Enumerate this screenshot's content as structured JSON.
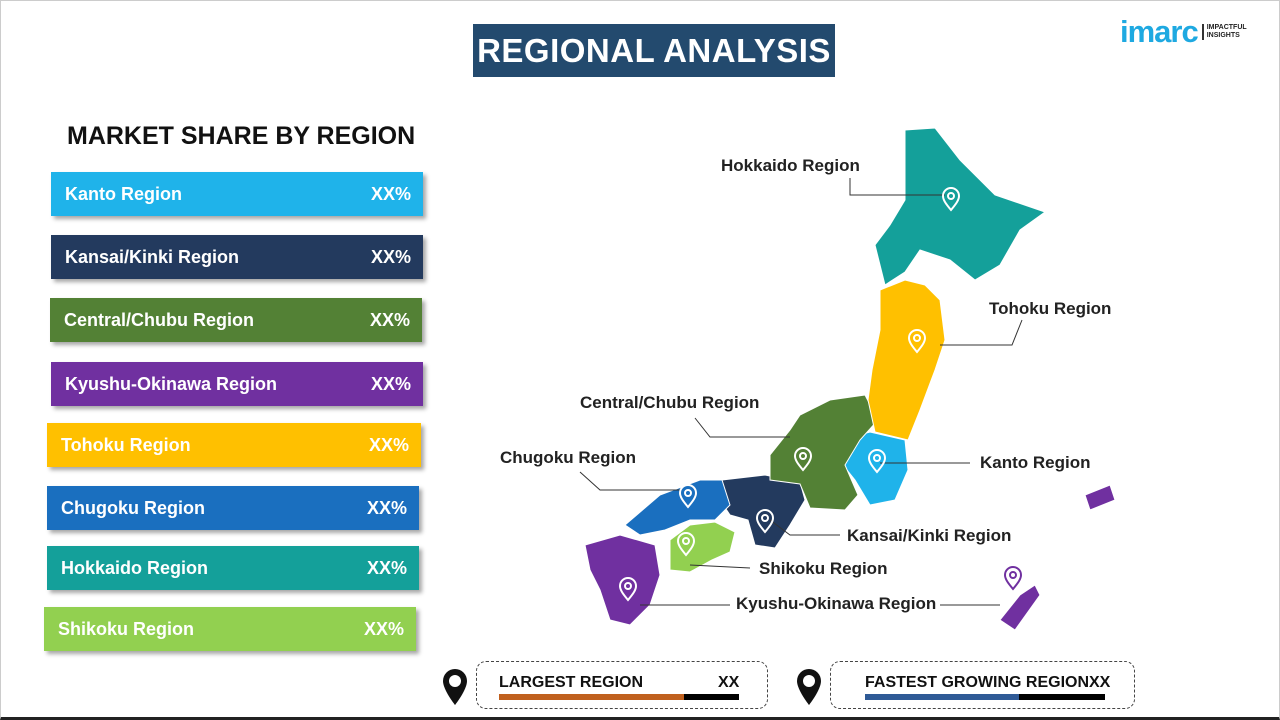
{
  "title": "REGIONAL ANALYSIS",
  "logo": {
    "word": "imarc",
    "tagline_1": "IMPACTFUL",
    "tagline_2": "INSIGHTS"
  },
  "subtitle": "MARKET SHARE BY REGION",
  "regions": [
    {
      "label": "Kanto Region",
      "value": "XX%",
      "color": "#1fb3ea",
      "map_label": "Kanto Region"
    },
    {
      "label": "Kansai/Kinki  Region",
      "value": "XX%",
      "color": "#233a5e",
      "map_label": "Kansai/Kinki Region"
    },
    {
      "label": "Central/Chubu  Region",
      "value": "XX%",
      "color": "#538135",
      "map_label": "Central/Chubu Region"
    },
    {
      "label": "Kyushu-Okinawa  Region",
      "value": "XX%",
      "color": "#7030a0",
      "map_label": "Kyushu-Okinawa Region"
    },
    {
      "label": "Tohoku Region",
      "value": "XX%",
      "color": "#ffc000",
      "map_label": "Tohoku Region"
    },
    {
      "label": "Chugoku  Region",
      "value": "XX%",
      "color": "#1a6fbf",
      "map_label": "Chugoku Region"
    },
    {
      "label": "Hokkaido  Region",
      "value": "XX%",
      "color": "#14a09a",
      "map_label": "Hokkaido Region"
    },
    {
      "label": "Shikoku  Region",
      "value": "XX%",
      "color": "#92d050",
      "map_label": "Shikoku Region"
    }
  ],
  "largest": {
    "label": "LARGEST REGION",
    "value": "XX",
    "fill": 0.77,
    "color": "#c0601e"
  },
  "fastest": {
    "label": "FASTEST GROWING REGION",
    "value": "XX",
    "fill": 0.64,
    "color": "#2f5a96"
  }
}
